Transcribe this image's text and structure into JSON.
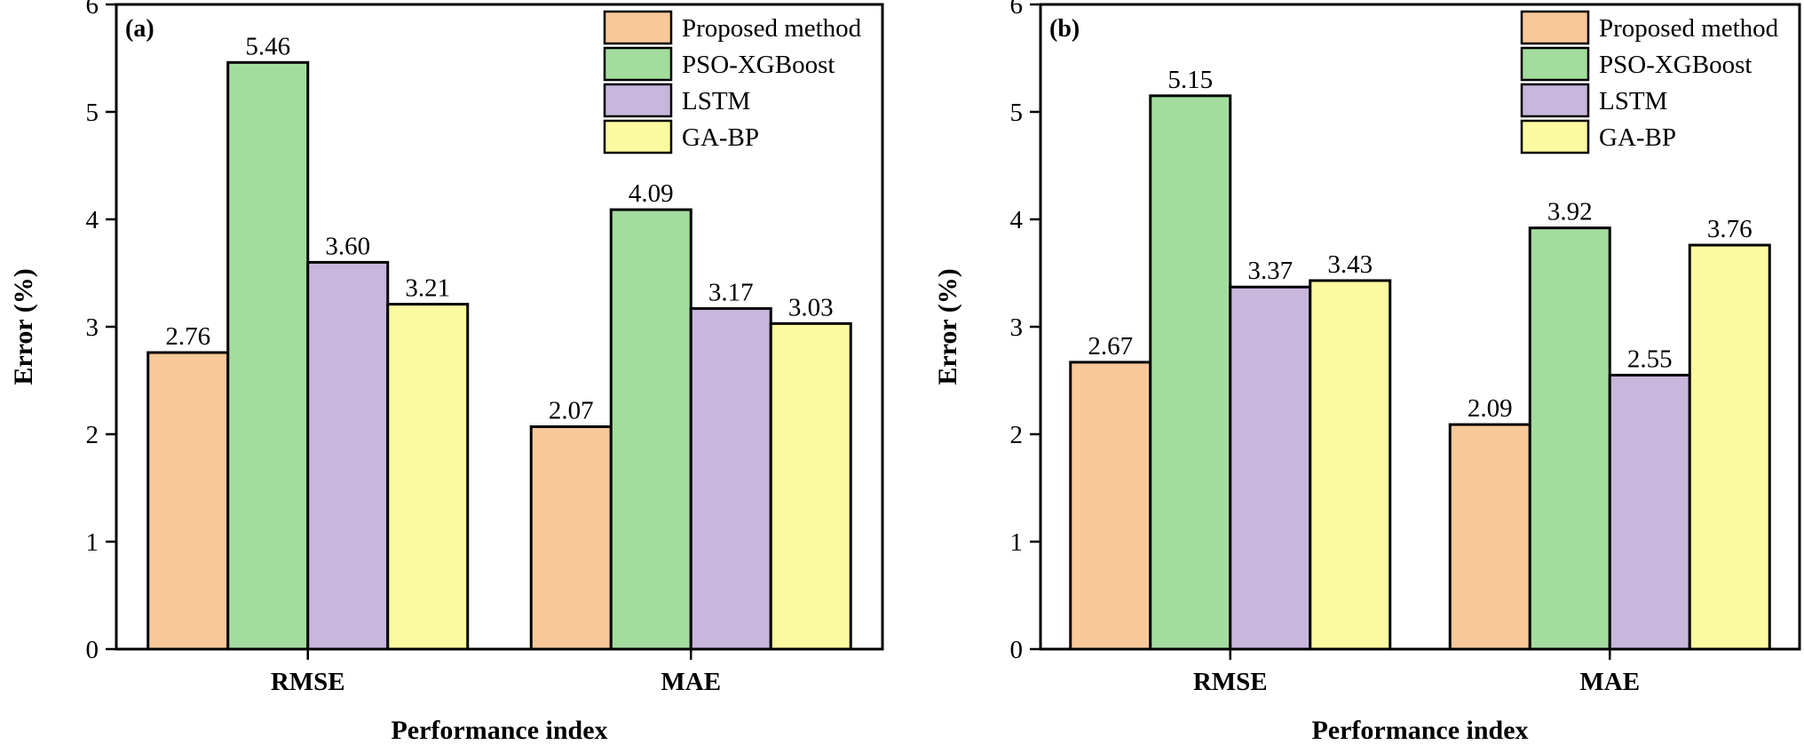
{
  "chart_data": [
    {
      "type": "bar",
      "panel_label": "(a)",
      "categories": [
        "RMSE",
        "MAE"
      ],
      "series": [
        {
          "name": "Proposed method",
          "values": [
            2.76,
            2.07
          ],
          "labels": [
            "2.76",
            "2.07"
          ],
          "color": "#f8c89a"
        },
        {
          "name": "PSO-XGBoost",
          "values": [
            5.46,
            4.09
          ],
          "labels": [
            "5.46",
            "4.09"
          ],
          "color": "#a3dd9e"
        },
        {
          "name": "LSTM",
          "values": [
            3.6,
            3.17
          ],
          "labels": [
            "3.60",
            "3.17"
          ],
          "color": "#c8b6dc"
        },
        {
          "name": "GA-BP",
          "values": [
            3.21,
            3.03
          ],
          "labels": [
            "3.21",
            "3.03"
          ],
          "color": "#fbfaa0"
        }
      ],
      "xlabel": "Performance index",
      "ylabel": "Error (%)",
      "ylim": [
        0,
        6
      ],
      "yticks": [
        0,
        1,
        2,
        3,
        4,
        5,
        6
      ],
      "grid": false,
      "legend_position": "top-right"
    },
    {
      "type": "bar",
      "panel_label": "(b)",
      "categories": [
        "RMSE",
        "MAE"
      ],
      "series": [
        {
          "name": "Proposed method",
          "values": [
            2.67,
            2.09
          ],
          "labels": [
            "2.67",
            "2.09"
          ],
          "color": "#f8c89a"
        },
        {
          "name": "PSO-XGBoost",
          "values": [
            5.15,
            3.92
          ],
          "labels": [
            "5.15",
            "3.92"
          ],
          "color": "#a3dd9e"
        },
        {
          "name": "LSTM",
          "values": [
            3.37,
            2.55
          ],
          "labels": [
            "3.37",
            "2.55"
          ],
          "color": "#c8b6dc"
        },
        {
          "name": "GA-BP",
          "values": [
            3.43,
            3.76
          ],
          "labels": [
            "3.43",
            "3.76"
          ],
          "color": "#fbfaa0"
        }
      ],
      "xlabel": "Performance index",
      "ylabel": "Error (%)",
      "ylim": [
        0,
        6
      ],
      "yticks": [
        0,
        1,
        2,
        3,
        4,
        5,
        6
      ],
      "grid": false,
      "legend_position": "top-right"
    }
  ]
}
